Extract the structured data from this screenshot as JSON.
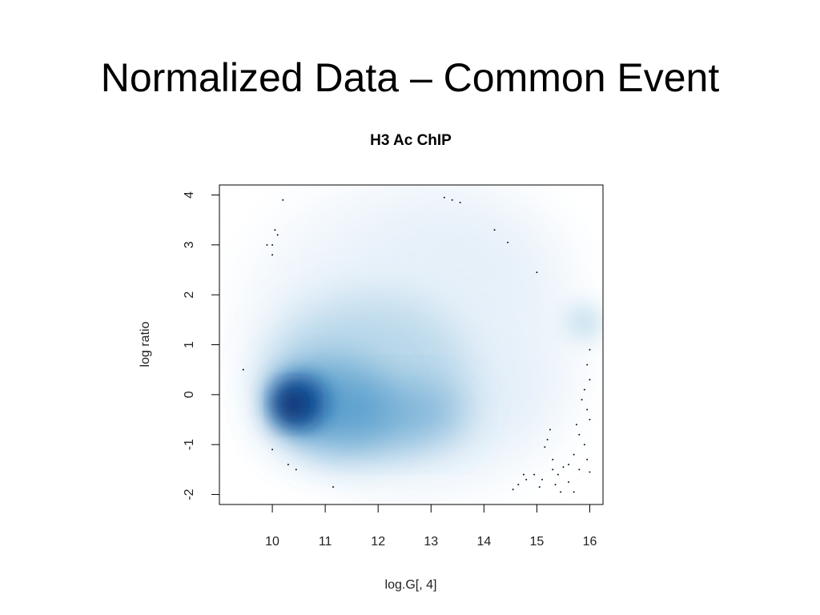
{
  "slide": {
    "title": "Normalized Data – Common Event"
  },
  "chart_data": {
    "type": "scatter",
    "title": "H3 Ac ChIP",
    "xlabel": "log.G[, 4]",
    "ylabel": "log ratio",
    "xlim": [
      9.0,
      16.25
    ],
    "ylim": [
      -2.2,
      4.2
    ],
    "xticks": [
      10,
      11,
      12,
      13,
      14,
      15,
      16
    ],
    "yticks": [
      -2,
      -1,
      0,
      1,
      2,
      3,
      4
    ],
    "density": {
      "style": "smoothed-scatter",
      "colormap": [
        "#ffffff",
        "#deebf7",
        "#9ecae1",
        "#4292c6",
        "#08519c",
        "#08306b"
      ],
      "peak": {
        "x": 10.4,
        "y": -0.2
      }
    },
    "outliers": [
      {
        "x": 10.2,
        "y": 3.9
      },
      {
        "x": 9.9,
        "y": 3.0
      },
      {
        "x": 10.0,
        "y": 3.0
      },
      {
        "x": 10.05,
        "y": 3.3
      },
      {
        "x": 10.1,
        "y": 3.2
      },
      {
        "x": 10.0,
        "y": 2.8
      },
      {
        "x": 13.25,
        "y": 3.95
      },
      {
        "x": 13.4,
        "y": 3.9
      },
      {
        "x": 13.55,
        "y": 3.85
      },
      {
        "x": 14.2,
        "y": 3.3
      },
      {
        "x": 14.45,
        "y": 3.05
      },
      {
        "x": 15.0,
        "y": 2.45
      },
      {
        "x": 9.45,
        "y": 0.5
      },
      {
        "x": 10.0,
        "y": -1.1
      },
      {
        "x": 10.3,
        "y": -1.4
      },
      {
        "x": 10.45,
        "y": -1.5
      },
      {
        "x": 11.15,
        "y": -1.85
      },
      {
        "x": 16.0,
        "y": 0.9
      },
      {
        "x": 15.95,
        "y": 0.6
      },
      {
        "x": 16.0,
        "y": 0.3
      },
      {
        "x": 15.9,
        "y": 0.1
      },
      {
        "x": 15.85,
        "y": -0.1
      },
      {
        "x": 15.95,
        "y": -0.3
      },
      {
        "x": 16.0,
        "y": -0.5
      },
      {
        "x": 15.75,
        "y": -0.6
      },
      {
        "x": 15.8,
        "y": -0.8
      },
      {
        "x": 15.9,
        "y": -1.0
      },
      {
        "x": 15.7,
        "y": -1.2
      },
      {
        "x": 15.6,
        "y": -1.4
      },
      {
        "x": 15.95,
        "y": -1.3
      },
      {
        "x": 16.0,
        "y": -1.55
      },
      {
        "x": 15.8,
        "y": -1.5
      },
      {
        "x": 15.5,
        "y": -1.45
      },
      {
        "x": 15.4,
        "y": -1.6
      },
      {
        "x": 15.3,
        "y": -1.5
      },
      {
        "x": 15.25,
        "y": -0.7
      },
      {
        "x": 15.2,
        "y": -0.9
      },
      {
        "x": 15.15,
        "y": -1.05
      },
      {
        "x": 15.3,
        "y": -1.3
      },
      {
        "x": 15.1,
        "y": -1.7
      },
      {
        "x": 14.95,
        "y": -1.6
      },
      {
        "x": 14.8,
        "y": -1.7
      },
      {
        "x": 14.65,
        "y": -1.8
      },
      {
        "x": 14.55,
        "y": -1.9
      },
      {
        "x": 15.05,
        "y": -1.85
      },
      {
        "x": 15.35,
        "y": -1.8
      },
      {
        "x": 15.6,
        "y": -1.75
      },
      {
        "x": 15.7,
        "y": -1.95
      },
      {
        "x": 15.45,
        "y": -1.95
      },
      {
        "x": 14.75,
        "y": -1.6
      }
    ]
  }
}
